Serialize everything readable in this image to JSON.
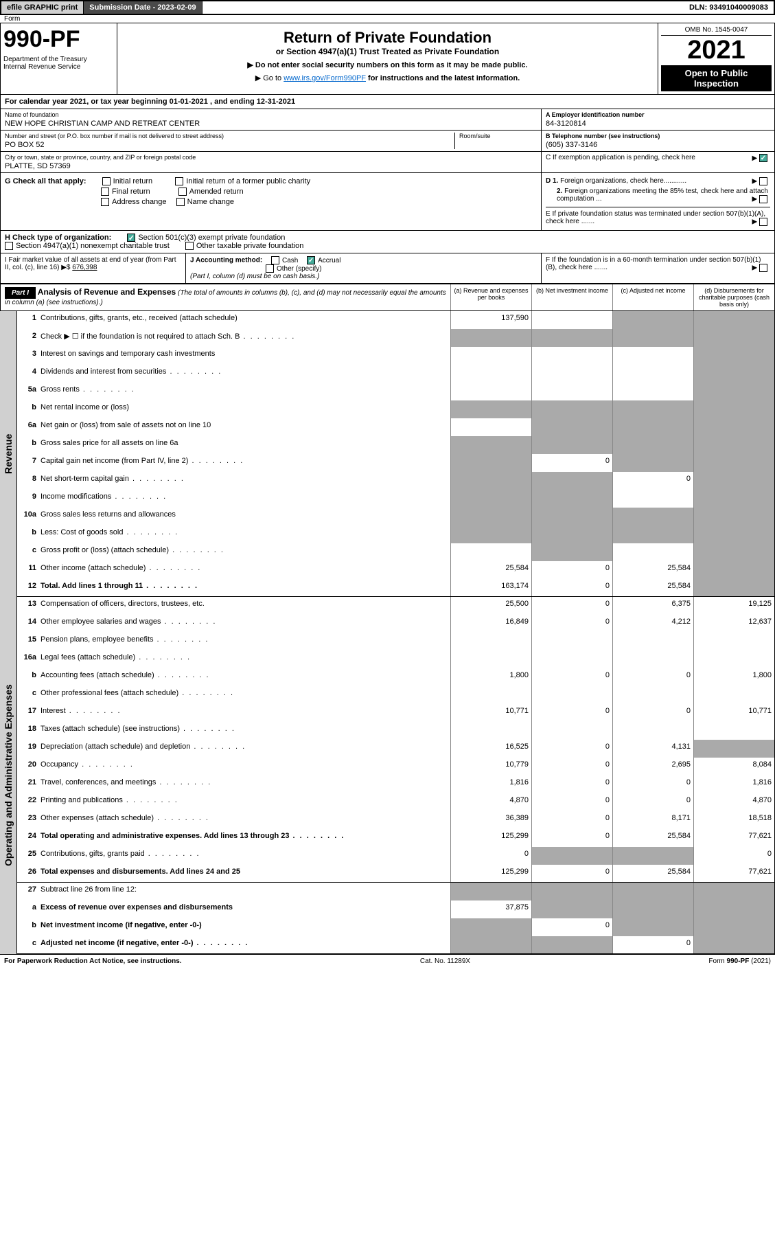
{
  "topbar": {
    "efile": "efile GRAPHIC print",
    "submission": "Submission Date - 2023-02-09",
    "dln": "DLN: 93491040009083"
  },
  "header": {
    "form_label": "Form",
    "form_number": "990-PF",
    "dept": "Department of the Treasury\nInternal Revenue Service",
    "title": "Return of Private Foundation",
    "subtitle": "or Section 4947(a)(1) Trust Treated as Private Foundation",
    "instr1": "▶ Do not enter social security numbers on this form as it may be made public.",
    "instr2_prefix": "▶ Go to ",
    "instr2_link": "www.irs.gov/Form990PF",
    "instr2_suffix": " for instructions and the latest information.",
    "omb": "OMB No. 1545-0047",
    "year": "2021",
    "open_public": "Open to Public Inspection"
  },
  "cal_year": "For calendar year 2021, or tax year beginning 01-01-2021            , and ending 12-31-2021",
  "info": {
    "name_lbl": "Name of foundation",
    "name": "NEW HOPE CHRISTIAN CAMP AND RETREAT CENTER",
    "addr_lbl": "Number and street (or P.O. box number if mail is not delivered to street address)",
    "addr": "PO BOX 52",
    "room_lbl": "Room/suite",
    "city_lbl": "City or town, state or province, country, and ZIP or foreign postal code",
    "city": "PLATTE, SD  57369",
    "ein_lbl": "A Employer identification number",
    "ein": "84-3120814",
    "phone_lbl": "B Telephone number (see instructions)",
    "phone": "(605) 337-3146",
    "pending_lbl": "C If exemption application is pending, check here"
  },
  "sec_g": {
    "label": "G Check all that apply:",
    "opts": [
      "Initial return",
      "Final return",
      "Address change",
      "Initial return of a former public charity",
      "Amended return",
      "Name change"
    ],
    "d1": "D 1. Foreign organizations, check here............",
    "d2": "2. Foreign organizations meeting the 85% test, check here and attach computation ...",
    "e": "E  If private foundation status was terminated under section 507(b)(1)(A), check here ......."
  },
  "sec_h": {
    "label": "H Check type of organization:",
    "opt1": "Section 501(c)(3) exempt private foundation",
    "opt2": "Section 4947(a)(1) nonexempt charitable trust",
    "opt3": "Other taxable private foundation"
  },
  "sec_i": {
    "label": "I Fair market value of all assets at end of year (from Part II, col. (c), line 16) ▶$",
    "val": "676,398"
  },
  "sec_j": {
    "label": "J Accounting method:",
    "cash": "Cash",
    "accrual": "Accrual",
    "other": "Other (specify)",
    "note": "(Part I, column (d) must be on cash basis.)"
  },
  "sec_f": "F  If the foundation is in a 60-month termination under section 507(b)(1)(B), check here .......",
  "part1": {
    "label": "Part I",
    "title": "Analysis of Revenue and Expenses",
    "note": "(The total of amounts in columns (b), (c), and (d) may not necessarily equal the amounts in column (a) (see instructions).)",
    "col_a": "(a)  Revenue and expenses per books",
    "col_b": "(b)  Net investment income",
    "col_c": "(c)  Adjusted net income",
    "col_d": "(d)  Disbursements for charitable purposes (cash basis only)"
  },
  "sides": {
    "revenue": "Revenue",
    "expenses": "Operating and Administrative Expenses"
  },
  "rows": [
    {
      "n": "1",
      "d": "Contributions, gifts, grants, etc., received (attach schedule)",
      "a": "137,590",
      "bg": false,
      "cg": true,
      "dg": true
    },
    {
      "n": "2",
      "d": "Check ▶ ☐ if the foundation is not required to attach Sch. B",
      "dots": true,
      "ag": true,
      "bg": true,
      "cg": true,
      "dg": true
    },
    {
      "n": "3",
      "d": "Interest on savings and temporary cash investments",
      "a": "",
      "b": "",
      "c": "",
      "dg": true
    },
    {
      "n": "4",
      "d": "Dividends and interest from securities",
      "dots": true,
      "a": "",
      "b": "",
      "c": "",
      "dg": true
    },
    {
      "n": "5a",
      "d": "Gross rents",
      "dots": true,
      "a": "",
      "b": "",
      "c": "",
      "dg": true
    },
    {
      "n": "b",
      "d": "Net rental income or (loss)",
      "ag": true,
      "bg": true,
      "cg": true,
      "dg": true
    },
    {
      "n": "6a",
      "d": "Net gain or (loss) from sale of assets not on line 10",
      "a": "",
      "bg": true,
      "cg": true,
      "dg": true
    },
    {
      "n": "b",
      "d": "Gross sales price for all assets on line 6a",
      "ag": true,
      "bg": true,
      "cg": true,
      "dg": true
    },
    {
      "n": "7",
      "d": "Capital gain net income (from Part IV, line 2)",
      "dots": true,
      "ag": true,
      "b": "0",
      "cg": true,
      "dg": true
    },
    {
      "n": "8",
      "d": "Net short-term capital gain",
      "dots": true,
      "ag": true,
      "bg": true,
      "c": "0",
      "dg": true
    },
    {
      "n": "9",
      "d": "Income modifications",
      "dots": true,
      "ag": true,
      "bg": true,
      "c": "",
      "dg": true
    },
    {
      "n": "10a",
      "d": "Gross sales less returns and allowances",
      "ag": true,
      "bg": true,
      "cg": true,
      "dg": true
    },
    {
      "n": "b",
      "d": "Less: Cost of goods sold",
      "dots": true,
      "ag": true,
      "bg": true,
      "cg": true,
      "dg": true
    },
    {
      "n": "c",
      "d": "Gross profit or (loss) (attach schedule)",
      "dots": true,
      "a": "",
      "bg": true,
      "c": "",
      "dg": true
    },
    {
      "n": "11",
      "d": "Other income (attach schedule)",
      "dots": true,
      "a": "25,584",
      "b": "0",
      "c": "25,584",
      "dg": true
    },
    {
      "n": "12",
      "d": "Total. Add lines 1 through 11",
      "dots": true,
      "bold": true,
      "a": "163,174",
      "b": "0",
      "c": "25,584",
      "dg": true,
      "bb": true
    }
  ],
  "exp_rows": [
    {
      "n": "13",
      "d": "Compensation of officers, directors, trustees, etc.",
      "a": "25,500",
      "b": "0",
      "c": "6,375",
      "dd": "19,125"
    },
    {
      "n": "14",
      "d": "Other employee salaries and wages",
      "dots": true,
      "a": "16,849",
      "b": "0",
      "c": "4,212",
      "dd": "12,637"
    },
    {
      "n": "15",
      "d": "Pension plans, employee benefits",
      "dots": true,
      "a": "",
      "b": "",
      "c": "",
      "dd": ""
    },
    {
      "n": "16a",
      "d": "Legal fees (attach schedule)",
      "dots": true,
      "a": "",
      "b": "",
      "c": "",
      "dd": ""
    },
    {
      "n": "b",
      "d": "Accounting fees (attach schedule)",
      "dots": true,
      "a": "1,800",
      "b": "0",
      "c": "0",
      "dd": "1,800"
    },
    {
      "n": "c",
      "d": "Other professional fees (attach schedule)",
      "dots": true,
      "a": "",
      "b": "",
      "c": "",
      "dd": ""
    },
    {
      "n": "17",
      "d": "Interest",
      "dots": true,
      "a": "10,771",
      "b": "0",
      "c": "0",
      "dd": "10,771"
    },
    {
      "n": "18",
      "d": "Taxes (attach schedule) (see instructions)",
      "dots": true,
      "a": "",
      "b": "",
      "c": "",
      "dd": ""
    },
    {
      "n": "19",
      "d": "Depreciation (attach schedule) and depletion",
      "dots": true,
      "a": "16,525",
      "b": "0",
      "c": "4,131",
      "dg": true
    },
    {
      "n": "20",
      "d": "Occupancy",
      "dots": true,
      "a": "10,779",
      "b": "0",
      "c": "2,695",
      "dd": "8,084"
    },
    {
      "n": "21",
      "d": "Travel, conferences, and meetings",
      "dots": true,
      "a": "1,816",
      "b": "0",
      "c": "0",
      "dd": "1,816"
    },
    {
      "n": "22",
      "d": "Printing and publications",
      "dots": true,
      "a": "4,870",
      "b": "0",
      "c": "0",
      "dd": "4,870"
    },
    {
      "n": "23",
      "d": "Other expenses (attach schedule)",
      "dots": true,
      "a": "36,389",
      "b": "0",
      "c": "8,171",
      "dd": "18,518"
    },
    {
      "n": "24",
      "d": "Total operating and administrative expenses. Add lines 13 through 23",
      "dots": true,
      "bold": true,
      "a": "125,299",
      "b": "0",
      "c": "25,584",
      "dd": "77,621"
    },
    {
      "n": "25",
      "d": "Contributions, gifts, grants paid",
      "dots": true,
      "a": "0",
      "bg": true,
      "cg": true,
      "dd": "0"
    },
    {
      "n": "26",
      "d": "Total expenses and disbursements. Add lines 24 and 25",
      "bold": true,
      "a": "125,299",
      "b": "0",
      "c": "25,584",
      "dd": "77,621",
      "bb": true
    },
    {
      "n": "27",
      "d": "Subtract line 26 from line 12:",
      "ag": true,
      "bg": true,
      "cg": true,
      "dg": true
    },
    {
      "n": "a",
      "d": "Excess of revenue over expenses and disbursements",
      "bold": true,
      "a": "37,875",
      "bg": true,
      "cg": true,
      "dg": true
    },
    {
      "n": "b",
      "d": "Net investment income (if negative, enter -0-)",
      "bold": true,
      "ag": true,
      "b": "0",
      "cg": true,
      "dg": true
    },
    {
      "n": "c",
      "d": "Adjusted net income (if negative, enter -0-)",
      "dots": true,
      "bold": true,
      "ag": true,
      "bg": true,
      "c": "0",
      "dg": true,
      "bb": true
    }
  ],
  "footer": {
    "left": "For Paperwork Reduction Act Notice, see instructions.",
    "mid": "Cat. No. 11289X",
    "right": "Form 990-PF (2021)"
  }
}
